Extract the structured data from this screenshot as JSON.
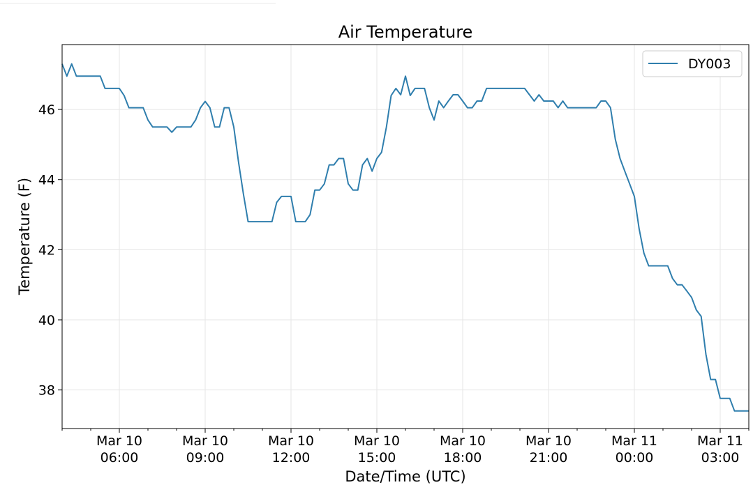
{
  "chart_data": {
    "type": "line",
    "title": "Air Temperature",
    "xlabel": "Date/Time (UTC)",
    "ylabel": "Temperature (F)",
    "grid": true,
    "legend_position": "top-right",
    "xlim": [
      "03-10 04:00",
      "03-11 04:00"
    ],
    "ylim": [
      36.9,
      47.85
    ],
    "yticks": [
      {
        "value": 38,
        "label": "38"
      },
      {
        "value": 40,
        "label": "40"
      },
      {
        "value": 42,
        "label": "42"
      },
      {
        "value": 44,
        "label": "44"
      },
      {
        "value": 46,
        "label": "46"
      }
    ],
    "xticks": [
      {
        "x": "03-10 06:00",
        "line1": "Mar 10",
        "line2": "06:00"
      },
      {
        "x": "03-10 09:00",
        "line1": "Mar 10",
        "line2": "09:00"
      },
      {
        "x": "03-10 12:00",
        "line1": "Mar 10",
        "line2": "12:00"
      },
      {
        "x": "03-10 15:00",
        "line1": "Mar 10",
        "line2": "15:00"
      },
      {
        "x": "03-10 18:00",
        "line1": "Mar 10",
        "line2": "18:00"
      },
      {
        "x": "03-10 21:00",
        "line1": "Mar 10",
        "line2": "21:00"
      },
      {
        "x": "03-11 00:00",
        "line1": "Mar 11",
        "line2": "00:00"
      },
      {
        "x": "03-11 03:00",
        "line1": "Mar 11",
        "line2": "03:00"
      }
    ],
    "series": [
      {
        "name": "DY003",
        "color": "#2f7ead",
        "points": [
          [
            "03-10 04:00",
            47.3
          ],
          [
            "03-10 04:10",
            46.95
          ],
          [
            "03-10 04:20",
            47.3
          ],
          [
            "03-10 04:30",
            46.95
          ],
          [
            "03-10 04:40",
            46.95
          ],
          [
            "03-10 04:50",
            46.95
          ],
          [
            "03-10 05:00",
            46.95
          ],
          [
            "03-10 05:10",
            46.95
          ],
          [
            "03-10 05:20",
            46.95
          ],
          [
            "03-10 05:30",
            46.6
          ],
          [
            "03-10 05:40",
            46.6
          ],
          [
            "03-10 05:50",
            46.6
          ],
          [
            "03-10 06:00",
            46.6
          ],
          [
            "03-10 06:10",
            46.4
          ],
          [
            "03-10 06:20",
            46.05
          ],
          [
            "03-10 06:30",
            46.05
          ],
          [
            "03-10 06:40",
            46.05
          ],
          [
            "03-10 06:50",
            46.05
          ],
          [
            "03-10 07:00",
            45.7
          ],
          [
            "03-10 07:10",
            45.5
          ],
          [
            "03-10 07:20",
            45.5
          ],
          [
            "03-10 07:30",
            45.5
          ],
          [
            "03-10 07:40",
            45.5
          ],
          [
            "03-10 07:50",
            45.35
          ],
          [
            "03-10 08:00",
            45.5
          ],
          [
            "03-10 08:10",
            45.5
          ],
          [
            "03-10 08:20",
            45.5
          ],
          [
            "03-10 08:30",
            45.5
          ],
          [
            "03-10 08:40",
            45.7
          ],
          [
            "03-10 08:50",
            46.05
          ],
          [
            "03-10 09:00",
            46.23
          ],
          [
            "03-10 09:10",
            46.05
          ],
          [
            "03-10 09:20",
            45.5
          ],
          [
            "03-10 09:30",
            45.5
          ],
          [
            "03-10 09:40",
            46.05
          ],
          [
            "03-10 09:50",
            46.05
          ],
          [
            "03-10 10:00",
            45.5
          ],
          [
            "03-10 10:10",
            44.5
          ],
          [
            "03-10 10:20",
            43.6
          ],
          [
            "03-10 10:30",
            42.8
          ],
          [
            "03-10 10:40",
            42.8
          ],
          [
            "03-10 10:50",
            42.8
          ],
          [
            "03-10 11:00",
            42.8
          ],
          [
            "03-10 11:10",
            42.8
          ],
          [
            "03-10 11:20",
            42.8
          ],
          [
            "03-10 11:30",
            43.35
          ],
          [
            "03-10 11:40",
            43.52
          ],
          [
            "03-10 11:50",
            43.52
          ],
          [
            "03-10 12:00",
            43.52
          ],
          [
            "03-10 12:10",
            42.8
          ],
          [
            "03-10 12:20",
            42.8
          ],
          [
            "03-10 12:30",
            42.8
          ],
          [
            "03-10 12:40",
            43.0
          ],
          [
            "03-10 12:50",
            43.7
          ],
          [
            "03-10 13:00",
            43.7
          ],
          [
            "03-10 13:10",
            43.88
          ],
          [
            "03-10 13:20",
            44.42
          ],
          [
            "03-10 13:30",
            44.42
          ],
          [
            "03-10 13:40",
            44.6
          ],
          [
            "03-10 13:50",
            44.6
          ],
          [
            "03-10 14:00",
            43.88
          ],
          [
            "03-10 14:10",
            43.7
          ],
          [
            "03-10 14:20",
            43.7
          ],
          [
            "03-10 14:30",
            44.42
          ],
          [
            "03-10 14:40",
            44.6
          ],
          [
            "03-10 14:50",
            44.24
          ],
          [
            "03-10 15:00",
            44.6
          ],
          [
            "03-10 15:10",
            44.78
          ],
          [
            "03-10 15:20",
            45.5
          ],
          [
            "03-10 15:30",
            46.4
          ],
          [
            "03-10 15:40",
            46.6
          ],
          [
            "03-10 15:50",
            46.42
          ],
          [
            "03-10 16:00",
            46.95
          ],
          [
            "03-10 16:10",
            46.4
          ],
          [
            "03-10 16:20",
            46.6
          ],
          [
            "03-10 16:30",
            46.6
          ],
          [
            "03-10 16:40",
            46.6
          ],
          [
            "03-10 16:50",
            46.05
          ],
          [
            "03-10 17:00",
            45.7
          ],
          [
            "03-10 17:10",
            46.24
          ],
          [
            "03-10 17:20",
            46.05
          ],
          [
            "03-10 17:30",
            46.24
          ],
          [
            "03-10 17:40",
            46.42
          ],
          [
            "03-10 17:50",
            46.42
          ],
          [
            "03-10 18:00",
            46.24
          ],
          [
            "03-10 18:10",
            46.05
          ],
          [
            "03-10 18:20",
            46.05
          ],
          [
            "03-10 18:30",
            46.24
          ],
          [
            "03-10 18:40",
            46.24
          ],
          [
            "03-10 18:50",
            46.6
          ],
          [
            "03-10 19:00",
            46.6
          ],
          [
            "03-10 19:30",
            46.6
          ],
          [
            "03-10 20:00",
            46.6
          ],
          [
            "03-10 20:10",
            46.6
          ],
          [
            "03-10 20:20",
            46.42
          ],
          [
            "03-10 20:30",
            46.24
          ],
          [
            "03-10 20:40",
            46.42
          ],
          [
            "03-10 20:50",
            46.24
          ],
          [
            "03-10 21:00",
            46.24
          ],
          [
            "03-10 21:10",
            46.24
          ],
          [
            "03-10 21:20",
            46.05
          ],
          [
            "03-10 21:30",
            46.24
          ],
          [
            "03-10 21:40",
            46.05
          ],
          [
            "03-10 22:00",
            46.05
          ],
          [
            "03-10 22:30",
            46.05
          ],
          [
            "03-10 22:40",
            46.05
          ],
          [
            "03-10 22:50",
            46.24
          ],
          [
            "03-10 23:00",
            46.24
          ],
          [
            "03-10 23:10",
            46.05
          ],
          [
            "03-10 23:20",
            45.15
          ],
          [
            "03-10 23:30",
            44.6
          ],
          [
            "03-10 23:40",
            44.24
          ],
          [
            "03-10 23:50",
            43.88
          ],
          [
            "03-11 00:00",
            43.52
          ],
          [
            "03-11 00:10",
            42.6
          ],
          [
            "03-11 00:20",
            41.9
          ],
          [
            "03-11 00:30",
            41.54
          ],
          [
            "03-11 00:40",
            41.54
          ],
          [
            "03-11 00:50",
            41.54
          ],
          [
            "03-11 01:00",
            41.54
          ],
          [
            "03-11 01:10",
            41.54
          ],
          [
            "03-11 01:20",
            41.18
          ],
          [
            "03-11 01:30",
            41.0
          ],
          [
            "03-11 01:40",
            41.0
          ],
          [
            "03-11 01:50",
            40.82
          ],
          [
            "03-11 02:00",
            40.64
          ],
          [
            "03-11 02:10",
            40.28
          ],
          [
            "03-11 02:20",
            40.1
          ],
          [
            "03-11 02:30",
            39.02
          ],
          [
            "03-11 02:40",
            38.3
          ],
          [
            "03-11 02:50",
            38.3
          ],
          [
            "03-11 03:00",
            37.76
          ],
          [
            "03-11 03:10",
            37.76
          ],
          [
            "03-11 03:20",
            37.76
          ],
          [
            "03-11 03:30",
            37.4
          ],
          [
            "03-11 03:40",
            37.4
          ],
          [
            "03-11 03:50",
            37.4
          ],
          [
            "03-11 04:00",
            37.4
          ]
        ]
      }
    ]
  }
}
